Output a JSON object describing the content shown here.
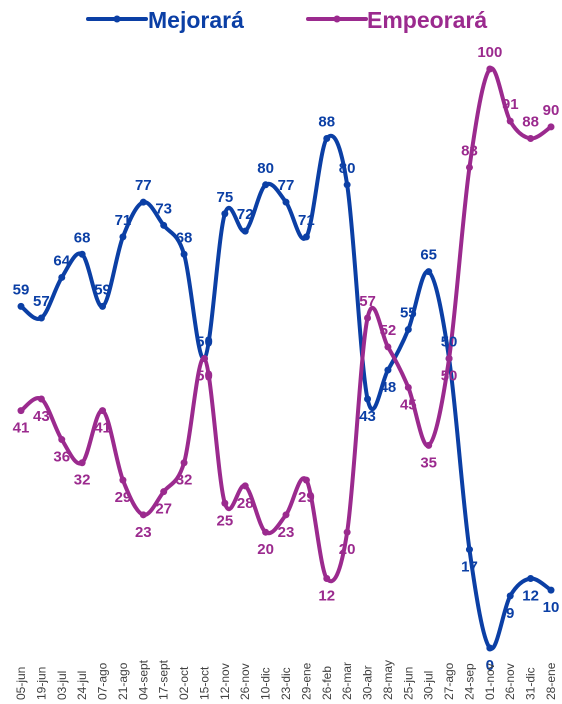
{
  "chart_data": {
    "type": "line",
    "categories": [
      "05-jun",
      "19-jun",
      "03-jul",
      "24-jul",
      "07-ago",
      "21-ago",
      "04-sept",
      "17-sept",
      "02-oct",
      "15-oct",
      "12-nov",
      "26-nov",
      "10-dic",
      "23-dic",
      "29-ene",
      "26-feb",
      "26-mar",
      "30-abr",
      "28-may",
      "25-jun",
      "30-jul",
      "27-ago",
      "24-sep",
      "01-nov",
      "26-nov",
      "31-dic",
      "28-ene"
    ],
    "series": [
      {
        "name": "Mejorará",
        "color": "#0b3fa5",
        "values": [
          59,
          57,
          64,
          68,
          59,
          71,
          77,
          73,
          68,
          50,
          75,
          72,
          80,
          77,
          71,
          88,
          80,
          43,
          48,
          55,
          65,
          50,
          17,
          0,
          9,
          12,
          10
        ],
        "labels": [
          "59",
          "57",
          "64",
          "68",
          "59",
          "71",
          "77",
          "73",
          "68",
          "50",
          "75",
          "72",
          "80",
          "77",
          "71",
          "88",
          "80",
          "43",
          "48",
          "55",
          "65",
          "50",
          "17",
          "0",
          "9",
          "12",
          "10"
        ]
      },
      {
        "name": "Empeorará",
        "color": "#9b2a8e",
        "values": [
          41,
          43,
          36,
          32,
          41,
          29,
          23,
          27,
          32,
          50,
          25,
          28,
          20,
          23,
          29,
          12,
          20,
          57,
          52,
          45,
          35,
          50,
          83,
          100,
          91,
          88,
          90
        ],
        "labels": [
          "41",
          "43",
          "36",
          "32",
          "41",
          "29",
          "23",
          "27",
          "32",
          "50",
          "25",
          "28",
          "20",
          "23",
          "29",
          "12",
          "20",
          "57",
          "52",
          "45",
          "35",
          "50",
          "83",
          "100",
          "91",
          "88",
          "90"
        ]
      }
    ],
    "ylim": [
      0,
      100
    ],
    "legend_position": "top",
    "grid": false,
    "xlabel": "",
    "ylabel": ""
  }
}
